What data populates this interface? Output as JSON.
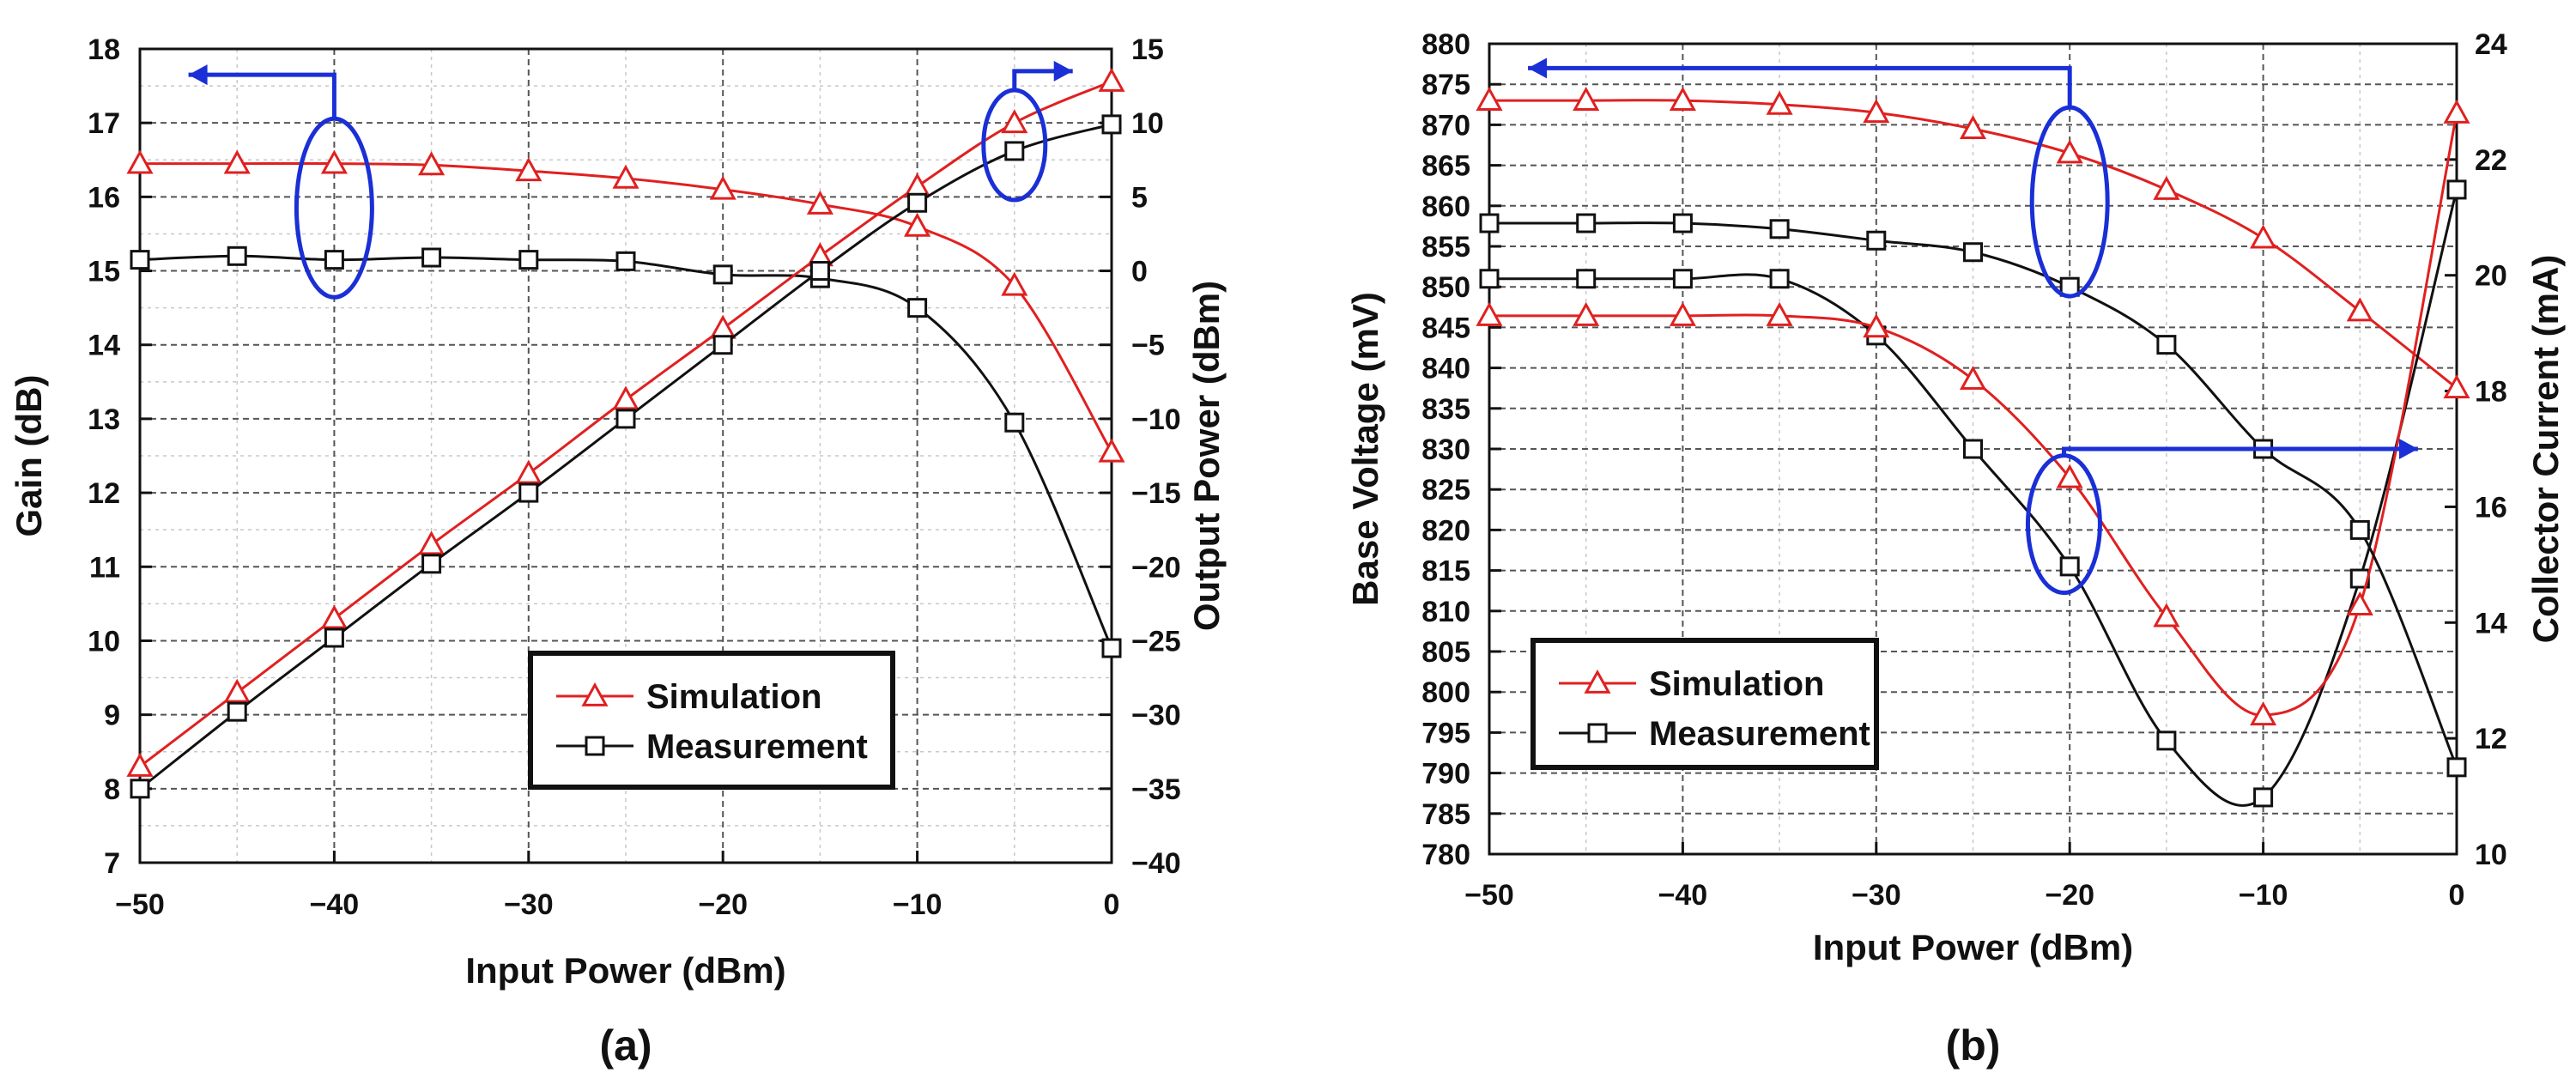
{
  "colors": {
    "simulation": "#e02020",
    "measurement": "#111111",
    "annotation": "#1a2fd6",
    "grid_major": "#555555",
    "grid_minor": "#c8c8c8"
  },
  "chart_data": [
    {
      "type": "line",
      "panel_label": "(a)",
      "xlabel": "Input Power (dBm)",
      "ylabel_left": "Gain (dB)",
      "ylabel_right": "Output Power (dBm)",
      "xlim": [
        -50,
        0
      ],
      "ylim_left": [
        7,
        18
      ],
      "ylim_right": [
        -40,
        15
      ],
      "xticks": [
        "−50",
        "−40",
        "−30",
        "−20",
        "−10",
        "0"
      ],
      "yticks_left": [
        "7",
        "8",
        "9",
        "10",
        "11",
        "12",
        "13",
        "14",
        "15",
        "16",
        "17",
        "18"
      ],
      "yticks_right": [
        "−40",
        "−35",
        "−30",
        "−25",
        "−20",
        "−15",
        "−10",
        "−5",
        "0",
        "5",
        "10",
        "15"
      ],
      "grid": true,
      "legend_position": "bottom-right",
      "legend": [
        "Simulation",
        "Measurement"
      ],
      "series": [
        {
          "name": "Simulation",
          "axis": "left",
          "marker": "triangle",
          "x": [
            -50,
            -45,
            -40,
            -35,
            -30,
            -25,
            -20,
            -15,
            -10,
            -5,
            0
          ],
          "values": [
            16.45,
            16.45,
            16.45,
            16.43,
            16.35,
            16.25,
            16.1,
            15.9,
            15.6,
            14.8,
            12.55
          ]
        },
        {
          "name": "Measurement",
          "axis": "left",
          "marker": "square",
          "x": [
            -50,
            -45,
            -40,
            -35,
            -30,
            -25,
            -20,
            -15,
            -10,
            -5,
            0
          ],
          "values": [
            15.15,
            15.2,
            15.15,
            15.18,
            15.15,
            15.13,
            14.95,
            14.9,
            14.5,
            12.95,
            9.9
          ]
        },
        {
          "name": "Simulation",
          "axis": "right",
          "marker": "triangle",
          "x": [
            -50,
            -45,
            -40,
            -35,
            -30,
            -25,
            -20,
            -15,
            -10,
            -5,
            0
          ],
          "values": [
            -33.5,
            -28.5,
            -23.5,
            -18.5,
            -13.7,
            -8.7,
            -3.9,
            1.0,
            5.7,
            10.0,
            12.8
          ]
        },
        {
          "name": "Measurement",
          "axis": "right",
          "marker": "square",
          "x": [
            -50,
            -45,
            -40,
            -35,
            -30,
            -25,
            -20,
            -15,
            -10,
            -5,
            0
          ],
          "values": [
            -35.0,
            -29.8,
            -24.8,
            -19.8,
            -15.0,
            -10.0,
            -5.0,
            0.0,
            4.6,
            8.1,
            9.9
          ]
        }
      ]
    },
    {
      "type": "line",
      "panel_label": "(b)",
      "xlabel": "Input Power (dBm)",
      "ylabel_left": "Base Voltage (mV)",
      "ylabel_right": "Collector Current (mA)",
      "xlim": [
        -50,
        0
      ],
      "ylim_left": [
        780,
        880
      ],
      "ylim_right": [
        10,
        24
      ],
      "xticks": [
        "−50",
        "−40",
        "−30",
        "−20",
        "−10",
        "0"
      ],
      "yticks_left": [
        "780",
        "785",
        "790",
        "795",
        "800",
        "805",
        "810",
        "815",
        "820",
        "825",
        "830",
        "835",
        "840",
        "845",
        "850",
        "855",
        "860",
        "865",
        "870",
        "875",
        "880"
      ],
      "yticks_right": [
        "10",
        "12",
        "14",
        "16",
        "18",
        "20",
        "22",
        "24"
      ],
      "grid": true,
      "legend_position": "bottom-left",
      "legend": [
        "Simulation",
        "Measurement"
      ],
      "series": [
        {
          "name": "Simulation",
          "axis": "left",
          "marker": "triangle",
          "x": [
            -50,
            -45,
            -40,
            -35,
            -30,
            -25,
            -20,
            -15,
            -10,
            -5,
            0
          ],
          "values": [
            873,
            873,
            873,
            872.5,
            871.5,
            869.5,
            866.5,
            862,
            856,
            847,
            837.5
          ]
        },
        {
          "name": "Measurement",
          "axis": "left",
          "marker": "square",
          "x": [
            -50,
            -45,
            -40,
            -35,
            -30,
            -25,
            -20,
            -15,
            -10,
            -5,
            0
          ],
          "values": [
            851,
            851,
            851,
            851,
            844,
            830,
            815.5,
            794,
            787,
            814,
            862
          ]
        },
        {
          "name": "Simulation",
          "axis": "right",
          "marker": "triangle",
          "x": [
            -50,
            -45,
            -40,
            -35,
            -30,
            -25,
            -20,
            -15,
            -10,
            -5,
            0
          ],
          "values": [
            19.3,
            19.3,
            19.3,
            19.3,
            19.1,
            18.2,
            16.5,
            14.1,
            12.4,
            14.3,
            22.8
          ]
        },
        {
          "name": "Measurement",
          "axis": "right",
          "marker": "square",
          "x": [
            -50,
            -45,
            -40,
            -35,
            -30,
            -25,
            -20,
            -15,
            -10,
            -5,
            0
          ],
          "values": [
            20.9,
            20.9,
            20.9,
            20.8,
            20.6,
            20.4,
            19.8,
            18.8,
            17.0,
            15.6,
            11.5
          ]
        }
      ]
    }
  ]
}
